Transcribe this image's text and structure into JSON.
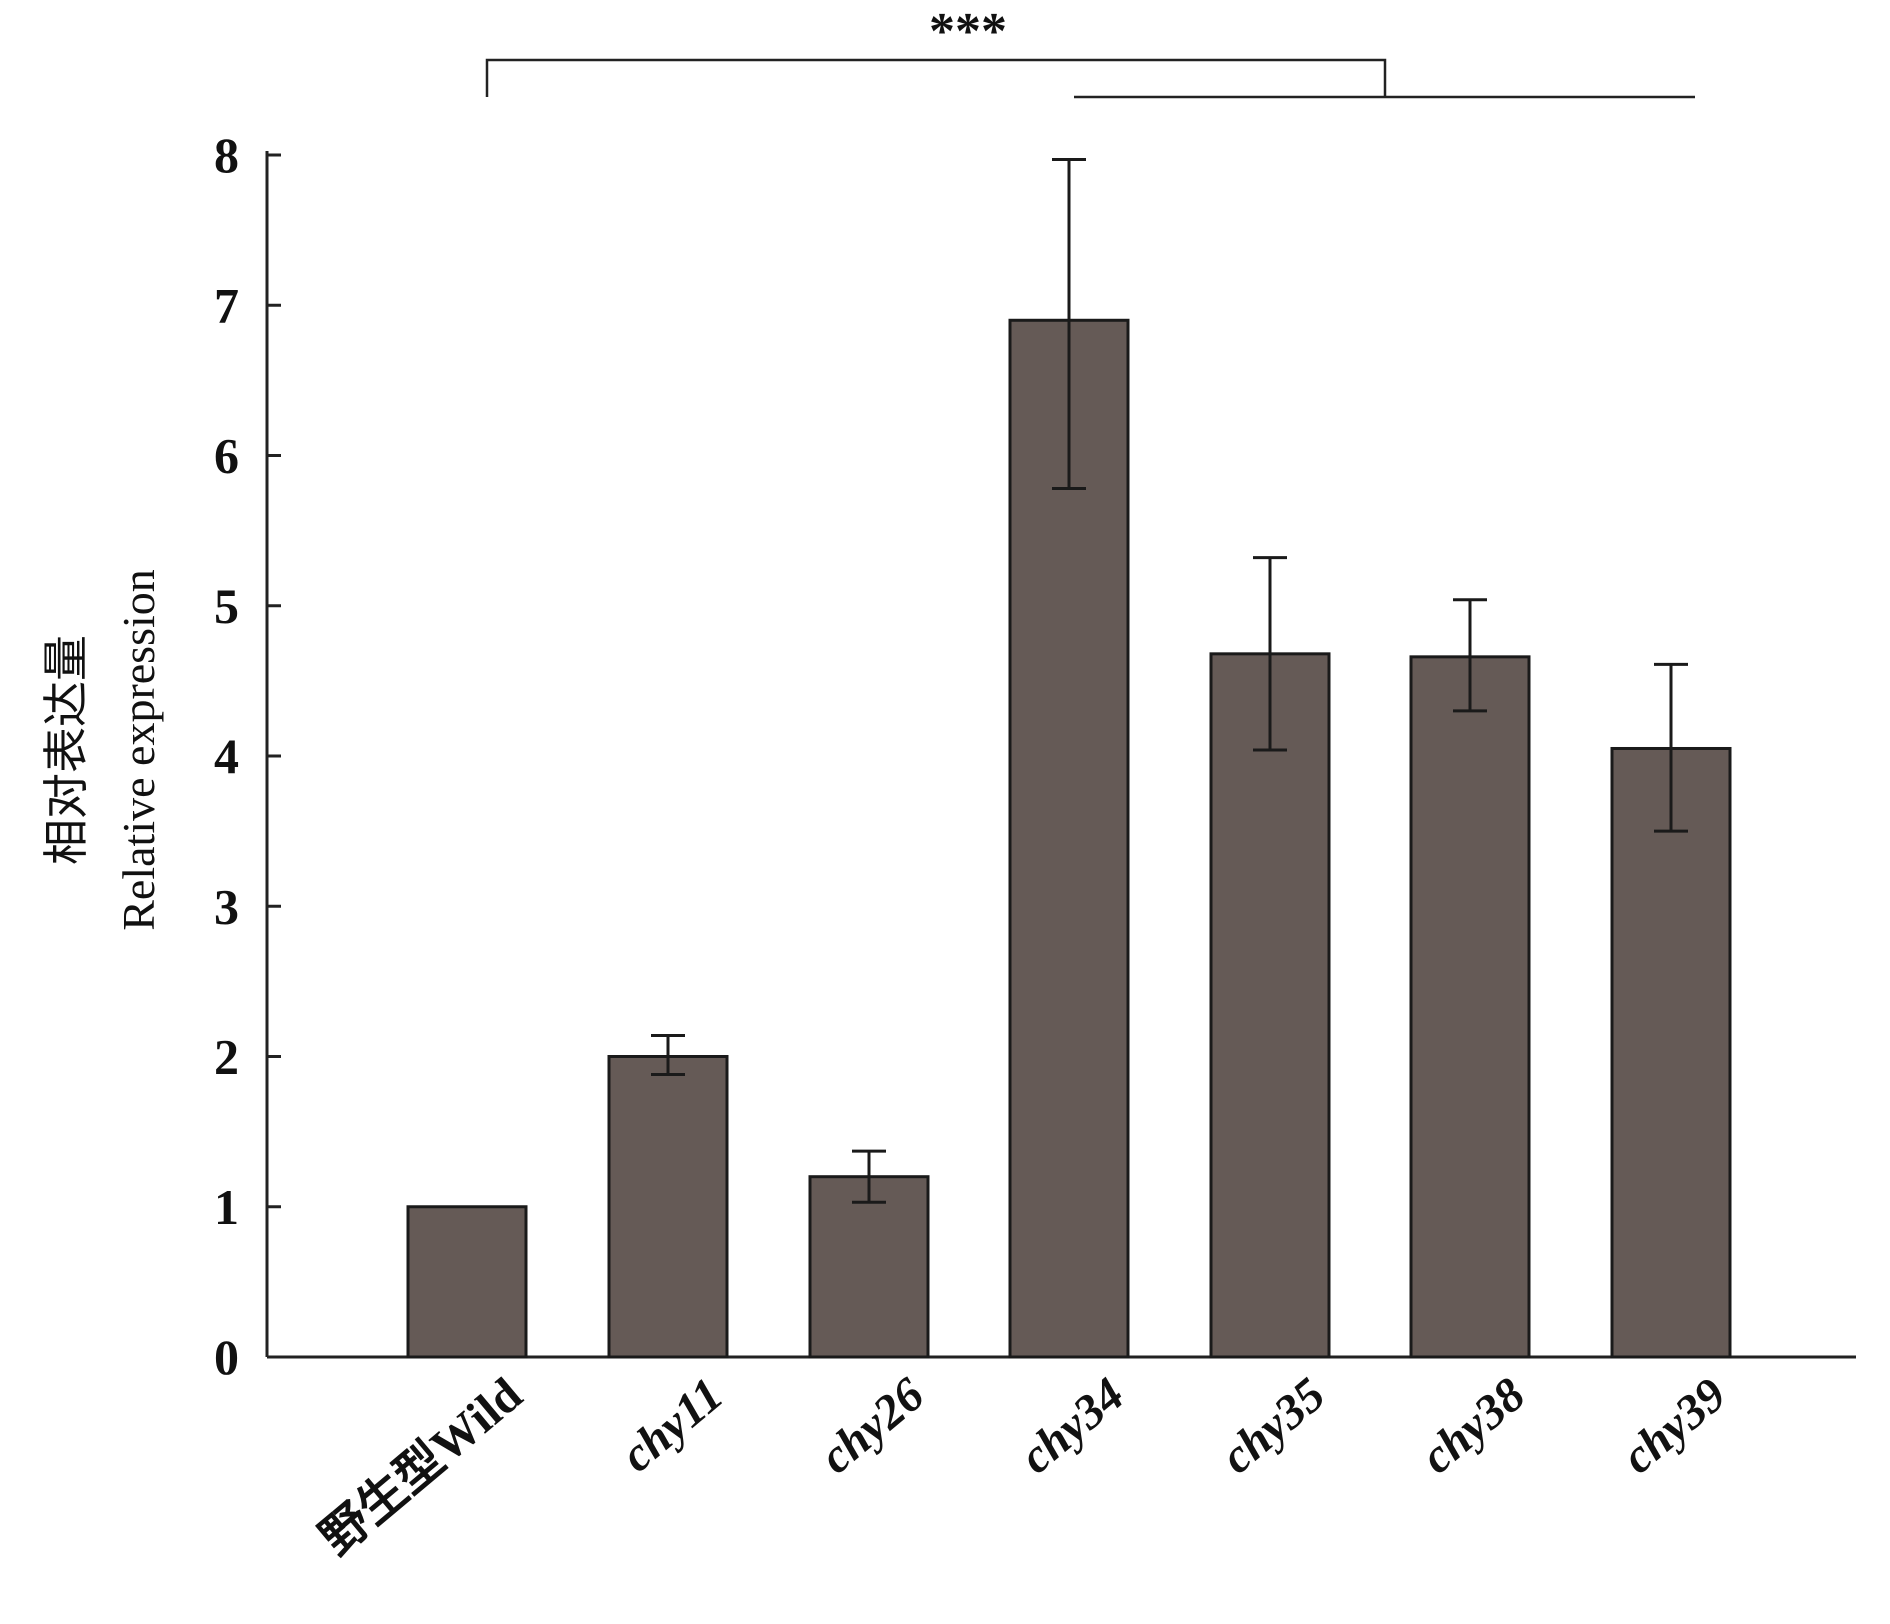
{
  "chart_data": {
    "type": "bar",
    "categories": [
      "野生型Wild",
      "chy11",
      "chy26",
      "chy34",
      "chy35",
      "chy38",
      "chy39"
    ],
    "values": [
      1.0,
      2.0,
      1.2,
      6.9,
      4.68,
      4.66,
      4.05
    ],
    "error_upper": [
      1.0,
      2.14,
      1.37,
      7.97,
      5.32,
      5.04,
      4.61
    ],
    "error_lower": [
      1.0,
      1.88,
      1.03,
      5.78,
      4.04,
      4.3,
      3.5
    ],
    "ylabel_cn": "相对表达量",
    "ylabel_en": "Relative expression",
    "ylim": [
      0,
      8
    ],
    "yticks": [
      "0",
      "1",
      "2",
      "3",
      "4",
      "5",
      "6",
      "7",
      "8"
    ],
    "significance": "***",
    "bar_color": "#655a56",
    "grid": false,
    "legend": "none"
  }
}
